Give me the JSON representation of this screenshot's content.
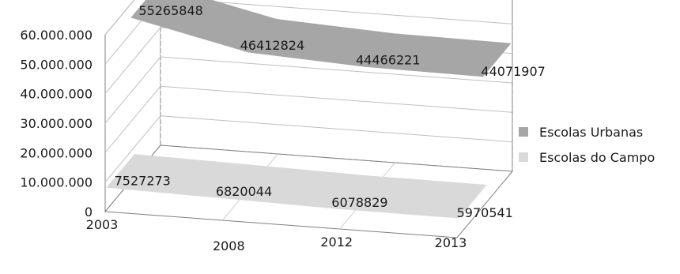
{
  "chart_data": {
    "type": "area",
    "x": [
      "2003",
      "2008",
      "2012",
      "2013"
    ],
    "series": [
      {
        "name": "Escolas Urbanas",
        "values": [
          55265848,
          46412824,
          44466221,
          44071907
        ],
        "color": "#a6a6a6"
      },
      {
        "name": "Escolas do Campo",
        "values": [
          7527273,
          6820044,
          6078829,
          5970541
        ],
        "color": "#d9d9d9"
      }
    ],
    "y_ticks": [
      "0",
      "10.000.000",
      "20.000.000",
      "30.000.000",
      "40.000.000",
      "50.000.000",
      "60.000.000"
    ],
    "ylim": [
      0,
      60000000
    ],
    "grid": true,
    "legend_position": "right",
    "title": "",
    "xlabel": "",
    "ylabel": ""
  }
}
